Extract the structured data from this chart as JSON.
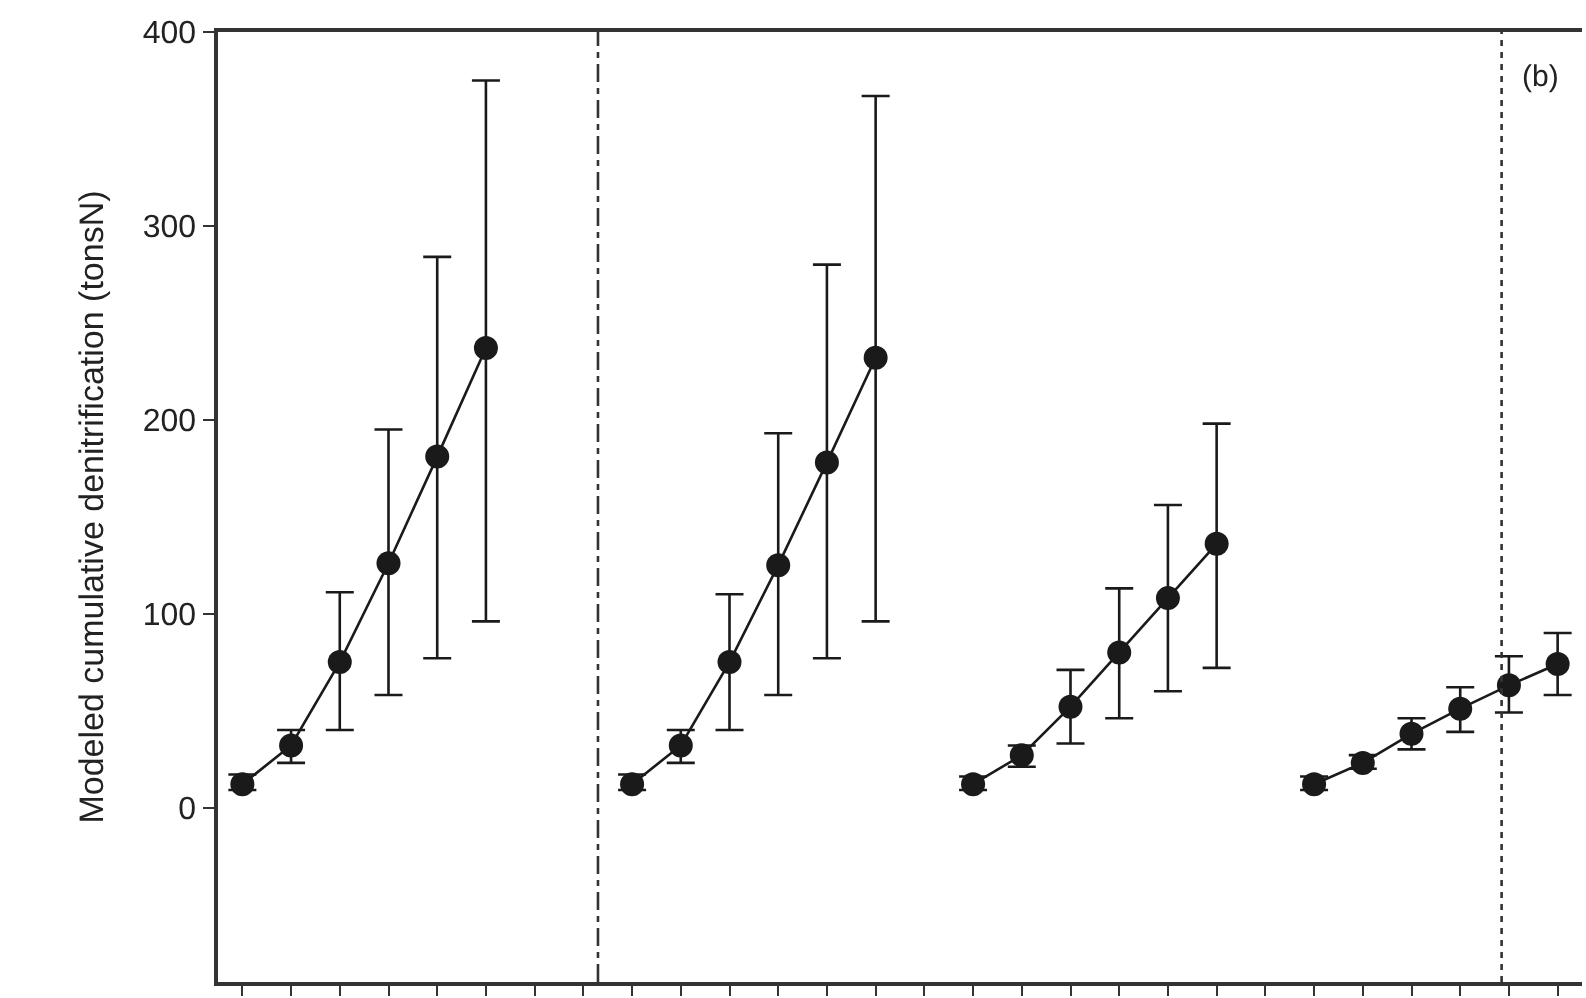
{
  "chart_data": {
    "type": "line",
    "ylabel": "Modeled cumulative denitrification (tonsN)",
    "categories": [
      null,
      null,
      null,
      null,
      null,
      null,
      null,
      null,
      null,
      null,
      null,
      null,
      null,
      null,
      null,
      null,
      null,
      null,
      null,
      null,
      null,
      null,
      null,
      null,
      null,
      null,
      null,
      null
    ],
    "ylim": [
      -90,
      400
    ],
    "yticks": [
      0,
      100,
      200,
      300,
      400
    ],
    "tick_labels": "y",
    "marker": "circle",
    "line_style": "solid",
    "series": [
      {
        "color": "#1a1a1a",
        "values": [
          12,
          32,
          75,
          126,
          181,
          237,
          null,
          null,
          null,
          null,
          null,
          null,
          null,
          null,
          null,
          null,
          null,
          null,
          null,
          null,
          null,
          null,
          null,
          null,
          null,
          null,
          null,
          null
        ],
        "errors": [
          [
            9,
            17
          ],
          [
            23,
            40
          ],
          [
            40,
            111
          ],
          [
            58,
            195
          ],
          [
            77,
            284
          ],
          [
            96,
            375
          ],
          null,
          null,
          null,
          null,
          null,
          null,
          null,
          null,
          null,
          null,
          null,
          null,
          null,
          null,
          null,
          null,
          null,
          null,
          null,
          null,
          null,
          null
        ]
      },
      {
        "color": "#1a1a1a",
        "values": [
          null,
          null,
          null,
          null,
          null,
          null,
          null,
          null,
          12,
          32,
          75,
          125,
          178,
          232,
          null,
          null,
          null,
          null,
          null,
          null,
          null,
          null,
          null,
          null,
          null,
          null,
          null,
          null
        ],
        "errors": [
          null,
          null,
          null,
          null,
          null,
          null,
          null,
          null,
          [
            9,
            17
          ],
          [
            23,
            40
          ],
          [
            40,
            110
          ],
          [
            58,
            193
          ],
          [
            77,
            280
          ],
          [
            96,
            367
          ],
          null,
          null,
          null,
          null,
          null,
          null,
          null,
          null,
          null,
          null,
          null,
          null,
          null,
          null
        ]
      },
      {
        "color": "#1a1a1a",
        "values": [
          null,
          null,
          null,
          null,
          null,
          null,
          null,
          null,
          null,
          null,
          null,
          null,
          null,
          null,
          null,
          12,
          27,
          52,
          80,
          108,
          136,
          null,
          null,
          null,
          null,
          null,
          null,
          null
        ],
        "errors": [
          null,
          null,
          null,
          null,
          null,
          null,
          null,
          null,
          null,
          null,
          null,
          null,
          null,
          null,
          null,
          [
            9,
            16
          ],
          [
            21,
            32
          ],
          [
            33,
            71
          ],
          [
            46,
            113
          ],
          [
            60,
            156
          ],
          [
            72,
            198
          ],
          null,
          null,
          null,
          null,
          null,
          null,
          null
        ]
      },
      {
        "color": "#1a1a1a",
        "values": [
          null,
          null,
          null,
          null,
          null,
          null,
          null,
          null,
          null,
          null,
          null,
          null,
          null,
          null,
          null,
          null,
          null,
          null,
          null,
          null,
          null,
          null,
          12,
          23,
          38,
          51,
          63,
          74
        ],
        "errors": [
          null,
          null,
          null,
          null,
          null,
          null,
          null,
          null,
          null,
          null,
          null,
          null,
          null,
          null,
          null,
          null,
          null,
          null,
          null,
          null,
          null,
          null,
          [
            9,
            16
          ],
          [
            20,
            27
          ],
          [
            30,
            46
          ],
          [
            39,
            62
          ],
          [
            49,
            78
          ],
          [
            58,
            90
          ]
        ]
      }
    ],
    "annotations": [
      "(b)"
    ]
  }
}
